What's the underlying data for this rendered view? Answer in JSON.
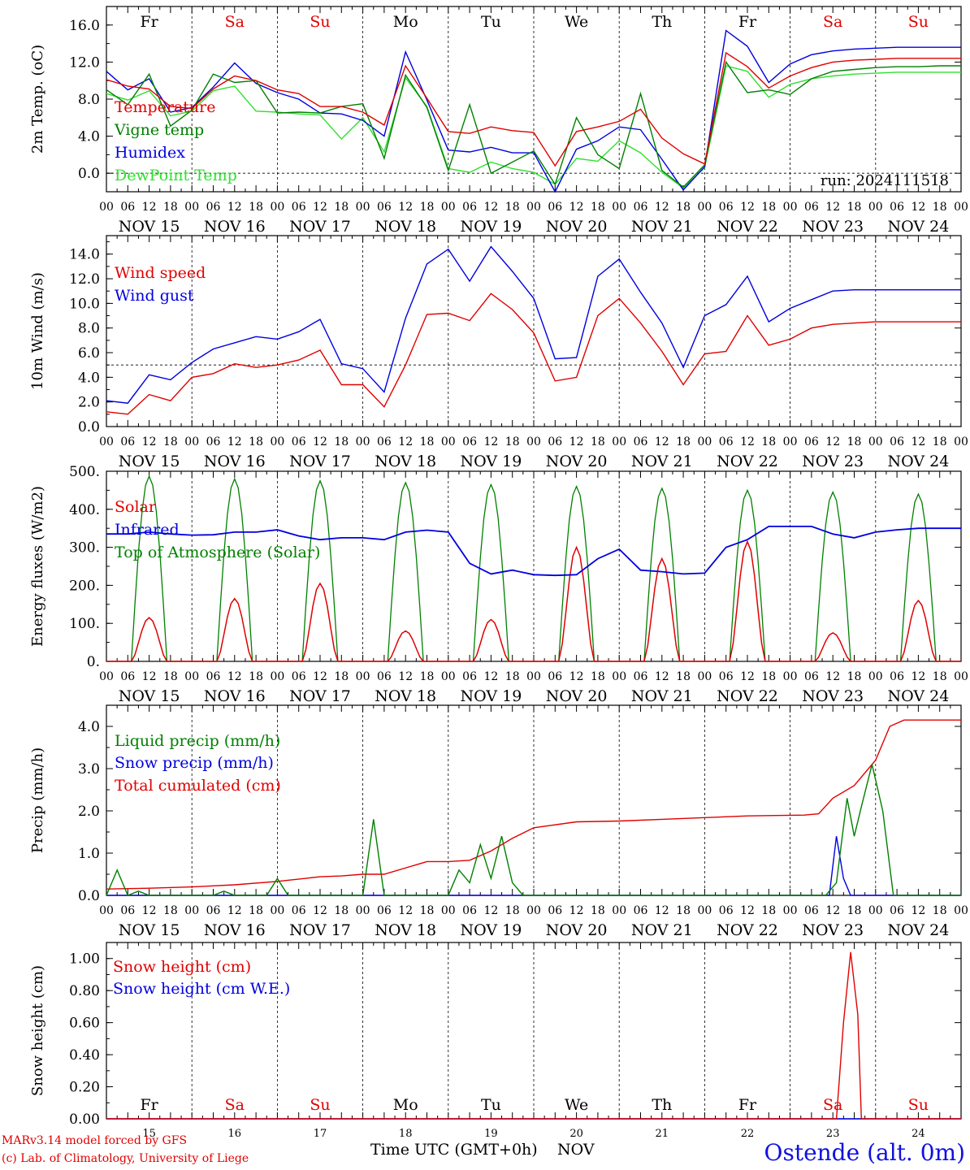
{
  "run_label": "run: 2024111518",
  "day_letters": [
    "Fr",
    "Sa",
    "Su",
    "Mo",
    "Tu",
    "We",
    "Th",
    "Fr",
    "Sa",
    "Su"
  ],
  "day_dates": [
    "NOV 15",
    "NOV 16",
    "NOV 17",
    "NOV 18",
    "NOV 19",
    "NOV 20",
    "NOV 21",
    "NOV 22",
    "NOV 23",
    "NOV 24"
  ],
  "day_numbers": [
    "15",
    "16",
    "17",
    "18",
    "19",
    "20",
    "21",
    "22",
    "23",
    "24"
  ],
  "hour_labels": [
    "00",
    "06",
    "12",
    "18"
  ],
  "colors": {
    "red": "#e00000",
    "green": "#008000",
    "blue": "#0000e0",
    "lightgreen": "#30e030",
    "weekend": "#e00000",
    "weekday": "#000000"
  },
  "footer": {
    "model": "MARv3.14 model forced by GFS",
    "lab": "(c) Lab. of Climatology, University of Liege",
    "time_label": "Time UTC (GMT+0h)",
    "month": "NOV",
    "station": "Ostende (alt. 0m)"
  },
  "chart_data": [
    {
      "type": "line",
      "ylabel": "2m Temp. (oC)",
      "ylim": [
        -2.0,
        18.0
      ],
      "yticks": [
        "0.0",
        "4.0",
        "8.0",
        "12.0",
        "16.0"
      ],
      "ytick_values": [
        0,
        4,
        8,
        12,
        16
      ],
      "ref_line": 0,
      "x_unit": "hours since NOV 15 00 UTC",
      "x": [
        0,
        6,
        12,
        18,
        24,
        30,
        36,
        42,
        48,
        54,
        60,
        66,
        72,
        78,
        84,
        90,
        96,
        102,
        108,
        114,
        120,
        126,
        132,
        138,
        144,
        150,
        156,
        162,
        168,
        174,
        180,
        186,
        192,
        198,
        204,
        210,
        216,
        222,
        228,
        234,
        240
      ],
      "series": [
        {
          "name": "Temperature",
          "color": "red",
          "values": [
            10.1,
            9.4,
            9.1,
            7.2,
            7.0,
            9.1,
            10.5,
            10.0,
            9.0,
            8.6,
            7.2,
            7.2,
            6.6,
            5.2,
            11.6,
            8.1,
            4.5,
            4.3,
            5.0,
            4.6,
            4.4,
            0.8,
            4.5,
            5.0,
            5.6,
            6.9,
            3.8,
            2.1,
            1.0,
            13.0,
            11.5,
            9.2,
            10.5,
            11.4,
            12.0,
            12.2,
            12.3,
            12.4,
            12.4,
            12.4,
            12.4
          ]
        },
        {
          "name": "Vigne temp",
          "color": "green",
          "values": [
            9.0,
            7.4,
            10.7,
            5.1,
            6.8,
            10.7,
            9.8,
            10.0,
            6.5,
            6.6,
            6.5,
            7.2,
            7.5,
            1.6,
            10.6,
            7.1,
            0.3,
            7.4,
            0.0,
            1.2,
            2.4,
            -1.2,
            6.0,
            2.0,
            0.5,
            8.6,
            0.3,
            -1.5,
            0.9,
            12.0,
            8.7,
            9.0,
            8.5,
            10.2,
            11.0,
            11.2,
            11.4,
            11.5,
            11.5,
            11.6,
            11.6
          ]
        },
        {
          "name": "Humidex",
          "color": "blue",
          "values": [
            11.0,
            9.0,
            10.2,
            6.6,
            7.1,
            9.3,
            11.9,
            9.7,
            8.7,
            8.0,
            6.5,
            6.4,
            5.7,
            4.0,
            13.1,
            7.9,
            2.5,
            2.3,
            2.8,
            2.2,
            2.2,
            -2.0,
            2.6,
            3.5,
            5.0,
            4.7,
            1.5,
            -1.8,
            0.7,
            15.4,
            13.7,
            9.8,
            11.8,
            12.8,
            13.2,
            13.4,
            13.5,
            13.6,
            13.6,
            13.6,
            13.6
          ]
        },
        {
          "name": "DewPoint Temp",
          "color": "lightgreen",
          "values": [
            8.6,
            7.9,
            8.9,
            6.2,
            6.7,
            8.9,
            9.4,
            6.7,
            6.6,
            6.4,
            6.3,
            3.7,
            6.0,
            2.3,
            10.3,
            7.2,
            0.5,
            0.1,
            1.2,
            0.5,
            0.1,
            -1.2,
            1.6,
            1.3,
            3.5,
            2.2,
            0.1,
            -1.6,
            0.6,
            11.6,
            11.0,
            8.2,
            9.6,
            10.2,
            10.5,
            10.7,
            10.8,
            10.9,
            10.9,
            10.9,
            10.9
          ]
        }
      ]
    },
    {
      "type": "line",
      "ylabel": "10m Wind (m/s)",
      "ylim": [
        0.0,
        15.5
      ],
      "yticks": [
        "0.0",
        "2.0",
        "4.0",
        "6.0",
        "8.0",
        "10.0",
        "12.0",
        "14.0"
      ],
      "ytick_values": [
        0,
        2,
        4,
        6,
        8,
        10,
        12,
        14
      ],
      "ref_line": 5,
      "x_unit": "hours since NOV 15 00 UTC",
      "x": [
        0,
        6,
        12,
        18,
        24,
        30,
        36,
        42,
        48,
        54,
        60,
        66,
        72,
        78,
        84,
        90,
        96,
        102,
        108,
        114,
        120,
        126,
        132,
        138,
        144,
        150,
        156,
        162,
        168,
        174,
        180,
        186,
        192,
        198,
        204,
        210,
        216,
        222,
        228,
        234,
        240
      ],
      "series": [
        {
          "name": "Wind speed",
          "color": "red",
          "values": [
            1.2,
            1.0,
            2.6,
            2.1,
            4.0,
            4.3,
            5.1,
            4.8,
            5.0,
            5.4,
            6.2,
            3.4,
            3.4,
            1.6,
            5.0,
            9.1,
            9.2,
            8.6,
            10.8,
            9.5,
            7.6,
            3.7,
            4.0,
            9.0,
            10.4,
            8.4,
            6.1,
            3.4,
            5.9,
            6.1,
            9.0,
            6.6,
            7.1,
            8.0,
            8.3,
            8.4,
            8.5,
            8.5,
            8.5,
            8.5,
            8.5
          ]
        },
        {
          "name": "Wind gust",
          "color": "blue",
          "values": [
            2.1,
            1.9,
            4.2,
            3.8,
            5.2,
            6.3,
            6.8,
            7.3,
            7.1,
            7.7,
            8.7,
            5.1,
            4.7,
            2.8,
            8.8,
            13.2,
            14.4,
            11.8,
            14.6,
            12.6,
            10.4,
            5.5,
            5.6,
            12.2,
            13.6,
            10.9,
            8.4,
            4.8,
            9.0,
            9.9,
            12.2,
            8.5,
            9.6,
            10.3,
            11.0,
            11.1,
            11.1,
            11.1,
            11.1,
            11.1,
            11.1
          ]
        }
      ]
    },
    {
      "type": "line",
      "ylabel": "Energy fluxes (W/m2)",
      "ylim": [
        0,
        500
      ],
      "yticks": [
        "0.",
        "100.",
        "200.",
        "300.",
        "400.",
        "500."
      ],
      "ytick_values": [
        0,
        100,
        200,
        300,
        400,
        500
      ],
      "ref_line": null,
      "x_unit": "hours since NOV 15 00 UTC",
      "solar_peaks": [
        115,
        165,
        205,
        80,
        110,
        300,
        270,
        315,
        75,
        160
      ],
      "toa_peaks": [
        487,
        480,
        475,
        470,
        465,
        460,
        455,
        450,
        445,
        440
      ],
      "infrared": {
        "x": [
          0,
          6,
          12,
          18,
          24,
          30,
          36,
          42,
          48,
          54,
          60,
          66,
          72,
          78,
          84,
          90,
          96,
          102,
          108,
          114,
          120,
          126,
          132,
          138,
          144,
          150,
          156,
          162,
          168,
          174,
          180,
          186,
          192,
          198,
          204,
          210,
          216,
          222,
          228,
          234,
          240
        ],
        "values": [
          335,
          335,
          340,
          335,
          332,
          333,
          340,
          340,
          346,
          330,
          320,
          325,
          325,
          320,
          340,
          345,
          340,
          258,
          230,
          240,
          228,
          226,
          228,
          270,
          295,
          240,
          236,
          230,
          232,
          300,
          320,
          355,
          355,
          355,
          335,
          325,
          340,
          346,
          350,
          350,
          350
        ]
      },
      "series": [
        {
          "name": "Solar",
          "color": "red"
        },
        {
          "name": "Infrared",
          "color": "blue"
        },
        {
          "name": "Top of Atmosphere (Solar)",
          "color": "green"
        }
      ]
    },
    {
      "type": "line",
      "ylabel": "Precip (mm/h)",
      "ylim": [
        0.0,
        4.5
      ],
      "yticks": [
        "0.0",
        "1.0",
        "2.0",
        "3.0",
        "4.0"
      ],
      "ytick_values": [
        0,
        1,
        2,
        3,
        4
      ],
      "ref_line": null,
      "x_unit": "hours since NOV 15 00 UTC",
      "series": [
        {
          "name": "Liquid precip (mm/h)",
          "color": "green",
          "x": [
            0,
            3,
            6,
            9,
            12,
            30,
            33,
            36,
            45,
            48,
            51,
            72,
            75,
            78,
            84,
            90,
            96,
            99,
            102,
            105,
            108,
            111,
            114,
            117,
            200,
            202,
            205,
            208,
            210,
            212,
            215,
            218,
            221,
            224,
            227,
            230,
            233,
            240
          ],
          "values": [
            0.0,
            0.6,
            0.0,
            0.1,
            0.0,
            0.0,
            0.1,
            0.0,
            0.0,
            0.4,
            0.0,
            0.0,
            1.8,
            0.0,
            0.0,
            0.0,
            0.0,
            0.6,
            0.3,
            1.2,
            0.4,
            1.4,
            0.3,
            0.0,
            0.0,
            0.0,
            0.3,
            2.3,
            1.4,
            2.1,
            3.1,
            2.0,
            0.0,
            0.0,
            0.0,
            0.0,
            0.0,
            0.0
          ]
        },
        {
          "name": "Snow precip (mm/h)",
          "color": "blue",
          "x": [
            0,
            200,
            203,
            205,
            207,
            209,
            210,
            240
          ],
          "values": [
            0,
            0,
            0,
            1.4,
            0.4,
            0.0,
            0.0,
            0.0
          ]
        },
        {
          "name": "Total cumulated (cm)",
          "color": "red",
          "x": [
            0,
            12,
            24,
            36,
            48,
            60,
            66,
            72,
            78,
            90,
            96,
            102,
            108,
            114,
            120,
            132,
            144,
            156,
            168,
            180,
            196,
            200,
            204,
            210,
            216,
            220,
            224,
            230,
            240
          ],
          "values": [
            0.15,
            0.17,
            0.2,
            0.25,
            0.33,
            0.44,
            0.46,
            0.5,
            0.5,
            0.8,
            0.8,
            0.83,
            1.05,
            1.35,
            1.6,
            1.74,
            1.76,
            1.8,
            1.84,
            1.88,
            1.9,
            1.93,
            2.3,
            2.6,
            3.2,
            4.0,
            4.15,
            4.15,
            4.15
          ]
        }
      ]
    },
    {
      "type": "line",
      "ylabel": "Snow height (cm)",
      "ylim": [
        0.0,
        1.1
      ],
      "yticks": [
        "0.00",
        "0.20",
        "0.40",
        "0.60",
        "0.80",
        "1.00"
      ],
      "ytick_values": [
        0,
        0.2,
        0.4,
        0.6,
        0.8,
        1.0
      ],
      "ref_line": null,
      "x_unit": "hours since NOV 15 00 UTC",
      "series": [
        {
          "name": "Snow height (cm)",
          "color": "red",
          "x": [
            0,
            205,
            207,
            209,
            211,
            212,
            240
          ],
          "values": [
            0,
            0,
            0.6,
            1.04,
            0.65,
            0,
            0
          ]
        },
        {
          "name": "Snow height (cm W.E.)",
          "color": "blue",
          "x": [
            0,
            240
          ],
          "values": [
            0,
            0
          ]
        }
      ]
    }
  ]
}
